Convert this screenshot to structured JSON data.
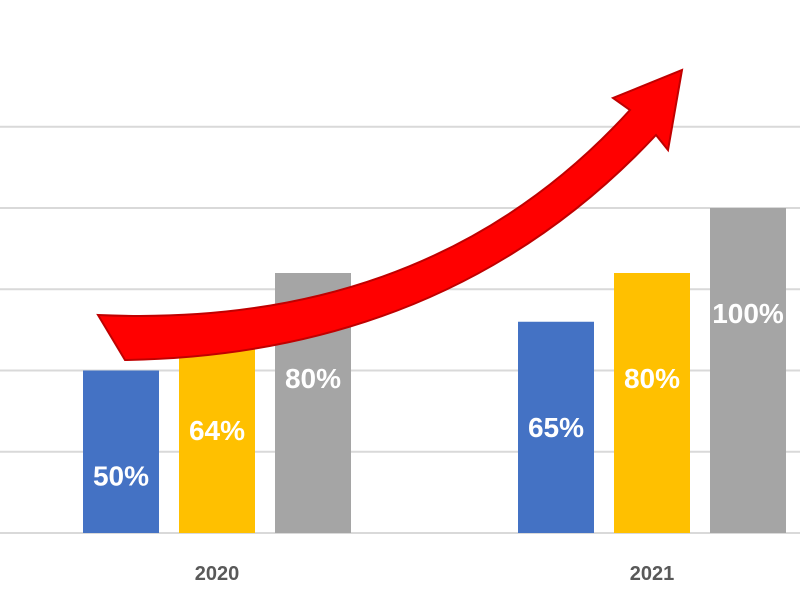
{
  "chart_data": {
    "type": "bar",
    "title": "",
    "xlabel": "",
    "ylabel": "",
    "categories": [
      "2020",
      "2021"
    ],
    "ylim": [
      0,
      125
    ],
    "grid": true,
    "legend": "none",
    "series": [
      {
        "values": [
          50,
          65
        ],
        "color": "#4472c4"
      },
      {
        "values": [
          64,
          80
        ],
        "color": "#ffc000"
      },
      {
        "values": [
          80,
          100
        ],
        "color": "#a5a5a5"
      }
    ],
    "data_labels": [
      [
        "50%",
        "65%"
      ],
      [
        "64%",
        "80%"
      ],
      [
        "80%",
        "100%"
      ]
    ],
    "annotations": [
      {
        "type": "trend-arrow",
        "direction": "up",
        "color": "#ff0000"
      }
    ]
  }
}
